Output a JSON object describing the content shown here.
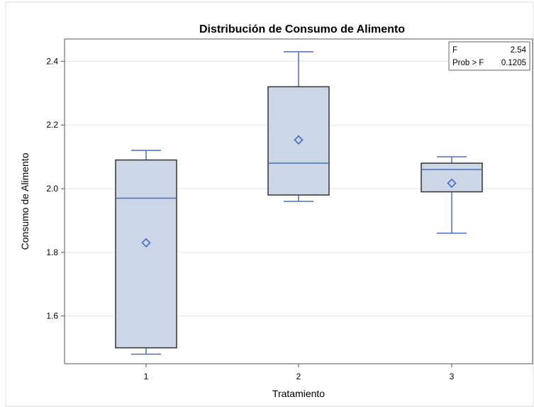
{
  "chart_data": {
    "type": "boxplot",
    "title": "Distribución de Consumo de Alimento",
    "xlabel": "Tratamiento",
    "ylabel": "Consumo de Alimento",
    "categories": [
      "1",
      "2",
      "3"
    ],
    "ylim": [
      1.45,
      2.47
    ],
    "yticks": [
      "1.6",
      "1.8",
      "2.0",
      "2.2",
      "2.4"
    ],
    "grid": true,
    "boxes": [
      {
        "category": "1",
        "min": 1.48,
        "q1": 1.5,
        "median": 1.97,
        "q3": 2.09,
        "max": 2.12,
        "mean": 1.83
      },
      {
        "category": "2",
        "min": 1.96,
        "q1": 1.98,
        "median": 2.08,
        "q3": 2.32,
        "max": 2.43,
        "mean": 2.153
      },
      {
        "category": "3",
        "min": 1.86,
        "q1": 1.99,
        "median": 2.06,
        "q3": 2.08,
        "max": 2.1,
        "mean": 2.017
      }
    ],
    "inset": {
      "rows": [
        {
          "label": "F",
          "value": "2.54"
        },
        {
          "label": "Prob > F",
          "value": "0.1205"
        }
      ]
    },
    "colors": {
      "box_fill": "#cbd6e6",
      "box_outline": "#333333",
      "whisker": "#4a6fc4",
      "median": "#4a6fc4",
      "mean_marker": "#3b64c8",
      "grid": "#e6e6e6"
    }
  }
}
